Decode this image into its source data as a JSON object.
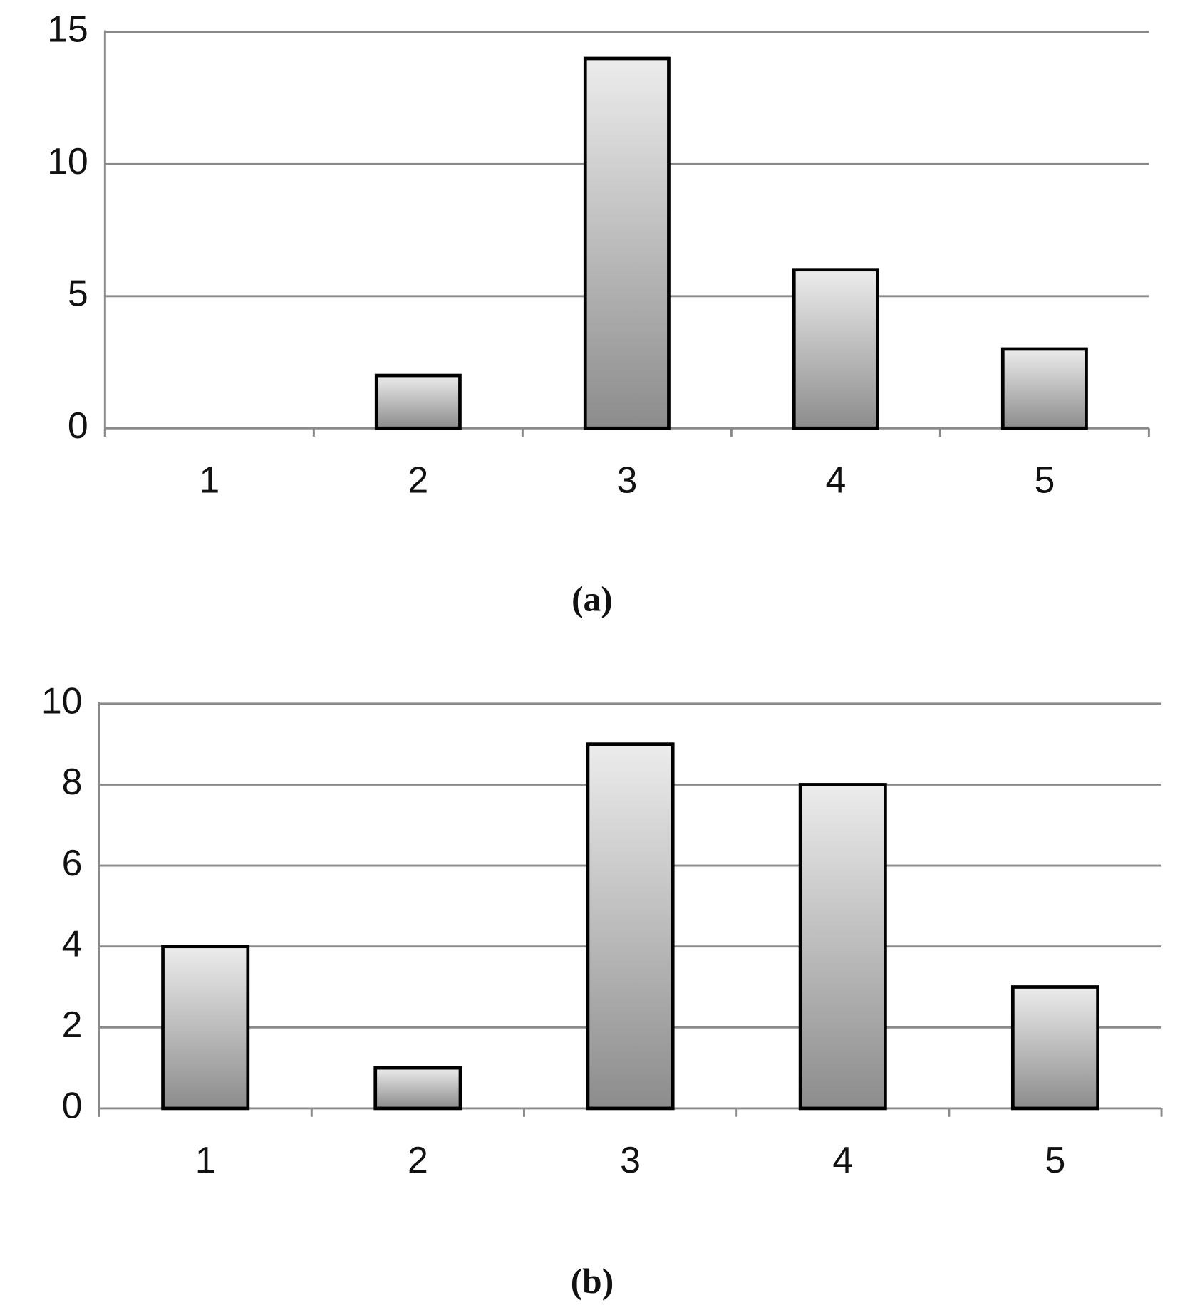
{
  "chart_data": [
    {
      "type": "bar",
      "caption": "(a)",
      "categories": [
        "1",
        "2",
        "3",
        "4",
        "5"
      ],
      "values": [
        0,
        2,
        14,
        6,
        3
      ],
      "color": "#8c8c8c",
      "ylim": [
        0,
        15
      ],
      "yticks": [
        0,
        5,
        10,
        15
      ],
      "grid": true
    },
    {
      "type": "bar",
      "caption": "(b)",
      "categories": [
        "1",
        "2",
        "3",
        "4",
        "5"
      ],
      "values": [
        4,
        1,
        9,
        8,
        3
      ],
      "color": "#8c8c8c",
      "ylim": [
        0,
        10
      ],
      "yticks": [
        0,
        2,
        4,
        6,
        8,
        10
      ],
      "grid": true
    }
  ]
}
